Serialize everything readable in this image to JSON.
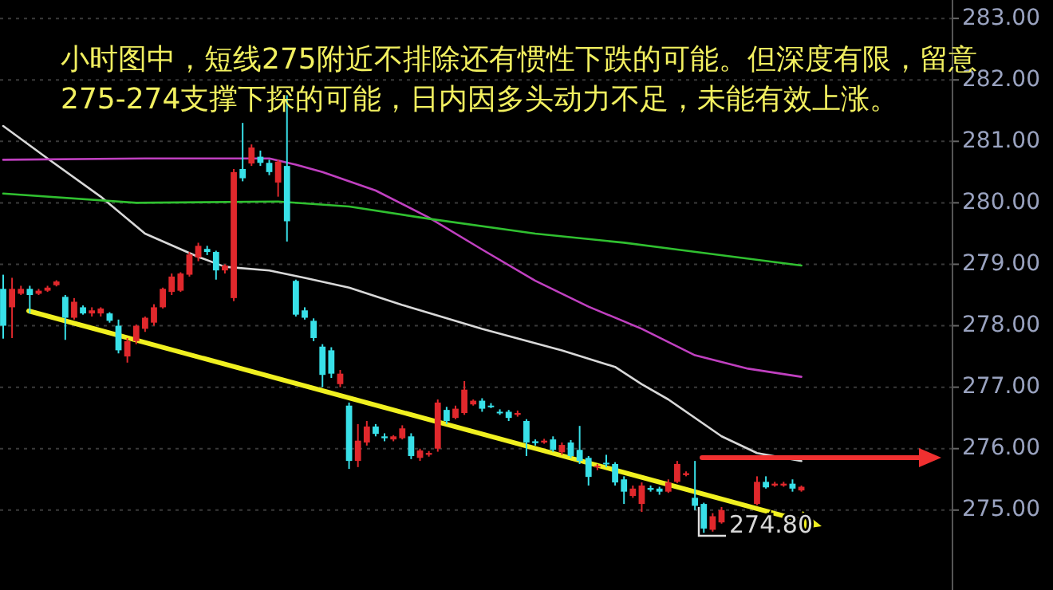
{
  "chart_data": {
    "type": "candlestick",
    "title": "小时图中，短线275附近不排除还有惯性下跌的可能。但深度有限，留意275-274支撑下探的可能，日内因多头动力不足，未能有效上涨。",
    "categories": [
      null,
      null,
      null,
      null,
      null,
      null,
      null,
      null,
      null,
      null,
      null,
      null,
      null,
      null,
      null,
      null,
      null,
      null,
      null,
      null,
      null,
      null,
      null,
      null,
      null,
      null,
      null,
      null,
      null,
      null,
      null,
      null,
      null,
      null,
      null,
      null,
      null,
      null,
      null,
      null,
      null,
      null,
      null,
      null,
      null,
      null,
      null,
      null,
      null,
      null,
      null,
      null,
      null,
      null,
      null,
      null,
      null,
      null,
      null,
      null,
      null,
      null,
      null,
      null,
      null,
      null,
      null,
      null,
      null,
      null,
      null,
      null,
      null,
      null,
      null,
      null,
      null,
      null,
      null,
      null,
      null,
      null,
      null,
      null,
      null,
      null,
      null,
      null,
      null,
      null,
      null,
      null,
      null,
      null,
      null,
      null,
      null,
      null,
      null,
      null,
      null,
      null,
      null,
      null,
      null,
      null,
      null
    ],
    "colors": [
      "#38e0e8",
      "#e0282c",
      "#e0282c",
      "#38e0e8",
      "#e0282c",
      "#e0282c",
      "#e0282c",
      "#38e0e8",
      "#e0282c",
      "#38e0e8",
      "#e0282c",
      "#e0282c",
      "#38e0e8",
      "#38e0e8",
      "#e0282c",
      "#e0282c",
      "#e0282c",
      "#e0282c",
      "#e0282c",
      "#e0282c",
      "#e0282c",
      "#e0282c",
      "#e0282c",
      "#38e0e8",
      "#38e0e8",
      "#e0282c",
      "#e0282c",
      "#38e0e8",
      "#e0282c",
      "#38e0e8",
      "#38e0e8",
      "#e0282c",
      "#38e0e8",
      "#38e0e8",
      "#38e0e8",
      "#38e0e8",
      "#38e0e8",
      "#38e0e8",
      "#e0282c",
      "#38e0e8",
      "#e0282c",
      "#e0282c",
      "#38e0e8",
      "#38e0e8",
      "#e0282c",
      "#e0282c",
      "#38e0e8",
      "#e0282c",
      "#e0282c",
      "#e0282c",
      "#38e0e8",
      "#e0282c",
      "#e0282c",
      "#e0282c",
      "#38e0e8",
      "#38e0e8",
      "#38e0e8",
      "#38e0e8",
      "#e0282c",
      "#38e0e8",
      "#38e0e8",
      "#e0282c",
      "#38e0e8",
      "#e0282c",
      "#38e0e8",
      "#38e0e8",
      "#38e0e8",
      "#e0282c",
      "#38e0e8",
      "#38e0e8",
      "#38e0e8",
      "#e0282c",
      "#e0282c",
      "#38e0e8",
      "#38e0e8",
      "#e0282c",
      "#e0282c",
      "#e0282c",
      "#38e0e8",
      "#38e0e8",
      "#e0282c",
      "#e0282c",
      null,
      null,
      null,
      "#e0282c",
      "#38e0e8",
      "#e0282c",
      "#e0282c",
      "#38e0e8",
      "#e0282c",
      null,
      null,
      null,
      null,
      null,
      null,
      null,
      null,
      null,
      null,
      null,
      null,
      null,
      null,
      null,
      null
    ],
    "ohlc": [
      [
        278.6,
        278.83,
        277.79,
        278.0
      ],
      [
        278.3,
        278.78,
        277.8,
        278.6
      ],
      [
        278.52,
        278.65,
        278.5,
        278.6
      ],
      [
        278.6,
        278.65,
        278.2,
        278.5
      ],
      [
        278.52,
        278.6,
        278.5,
        278.57
      ],
      [
        278.57,
        278.65,
        278.55,
        278.62
      ],
      [
        278.66,
        278.74,
        278.64,
        278.72
      ],
      [
        278.47,
        278.5,
        277.77,
        278.13
      ],
      [
        278.13,
        278.45,
        278.1,
        278.39
      ],
      [
        278.3,
        278.33,
        278.18,
        278.2
      ],
      [
        278.2,
        278.3,
        278.15,
        278.25
      ],
      [
        278.2,
        278.3,
        278.15,
        278.28
      ],
      [
        278.2,
        278.22,
        278.05,
        278.08
      ],
      [
        278.0,
        278.1,
        277.55,
        277.6
      ],
      [
        277.5,
        277.8,
        277.4,
        277.75
      ],
      [
        277.75,
        278.02,
        277.7,
        278.0
      ],
      [
        277.95,
        278.15,
        277.9,
        278.13
      ],
      [
        278.05,
        278.35,
        278.0,
        278.3
      ],
      [
        278.3,
        278.62,
        278.28,
        278.6
      ],
      [
        278.55,
        278.85,
        278.5,
        278.8
      ],
      [
        278.57,
        278.87,
        278.55,
        278.85
      ],
      [
        278.83,
        279.2,
        278.8,
        279.16
      ],
      [
        279.11,
        279.35,
        279.05,
        279.3
      ],
      [
        279.25,
        279.3,
        279.15,
        279.2
      ],
      [
        279.2,
        279.22,
        278.75,
        278.9
      ],
      [
        278.9,
        279.0,
        278.85,
        278.98
      ],
      [
        278.45,
        280.55,
        278.4,
        280.5
      ],
      [
        280.55,
        281.3,
        280.35,
        280.4
      ],
      [
        280.64,
        280.95,
        280.6,
        280.9
      ],
      [
        280.75,
        280.85,
        280.6,
        280.65
      ],
      [
        280.65,
        280.7,
        280.45,
        280.5
      ],
      [
        280.33,
        280.7,
        280.1,
        280.67
      ],
      [
        280.6,
        281.75,
        279.37,
        279.7
      ],
      [
        278.73,
        278.75,
        278.15,
        278.18
      ],
      [
        278.25,
        278.3,
        278.1,
        278.13
      ],
      [
        278.08,
        278.12,
        277.75,
        277.8
      ],
      [
        277.66,
        277.7,
        277.0,
        277.2
      ],
      [
        277.6,
        277.65,
        277.15,
        277.22
      ],
      [
        277.05,
        277.28,
        277.0,
        277.22
      ],
      [
        276.7,
        276.75,
        275.67,
        275.8
      ],
      [
        275.8,
        276.4,
        275.7,
        276.13
      ],
      [
        276.1,
        276.45,
        276.05,
        276.36
      ],
      [
        276.36,
        276.4,
        276.2,
        276.24
      ],
      [
        276.2,
        276.25,
        276.12,
        276.17
      ],
      [
        276.15,
        276.22,
        276.12,
        276.2
      ],
      [
        276.17,
        276.38,
        276.15,
        276.33
      ],
      [
        276.2,
        276.25,
        275.83,
        275.88
      ],
      [
        275.85,
        276.0,
        275.8,
        275.97
      ],
      [
        275.9,
        275.96,
        275.87,
        275.93
      ],
      [
        276.0,
        276.8,
        275.95,
        276.75
      ],
      [
        276.63,
        276.68,
        276.4,
        276.45
      ],
      [
        276.5,
        276.7,
        276.48,
        276.65
      ],
      [
        276.58,
        277.1,
        276.55,
        276.96
      ],
      [
        276.72,
        276.8,
        276.7,
        276.78
      ],
      [
        276.78,
        276.82,
        276.6,
        276.65
      ],
      [
        276.7,
        276.74,
        276.66,
        276.68
      ],
      [
        276.6,
        276.64,
        276.55,
        276.58
      ],
      [
        276.6,
        276.63,
        276.45,
        276.5
      ],
      [
        276.55,
        276.62,
        276.52,
        276.58
      ],
      [
        276.45,
        276.48,
        275.88,
        276.1
      ],
      [
        276.12,
        276.15,
        276.05,
        276.09
      ],
      [
        276.1,
        276.16,
        276.08,
        276.13
      ],
      [
        276.15,
        276.2,
        275.95,
        275.98
      ],
      [
        275.94,
        276.1,
        275.9,
        276.06
      ],
      [
        276.1,
        276.14,
        275.85,
        275.88
      ],
      [
        275.98,
        276.37,
        275.75,
        275.8
      ],
      [
        275.85,
        275.88,
        275.4,
        275.54
      ],
      [
        275.7,
        275.75,
        275.65,
        275.72
      ],
      [
        275.77,
        275.9,
        275.7,
        275.75
      ],
      [
        275.75,
        275.78,
        275.4,
        275.45
      ],
      [
        275.5,
        275.55,
        275.1,
        275.3
      ],
      [
        275.23,
        275.4,
        275.2,
        275.35
      ],
      [
        275.1,
        275.45,
        274.97,
        275.4
      ],
      [
        275.36,
        275.4,
        275.3,
        275.33
      ],
      [
        275.35,
        275.38,
        275.25,
        275.3
      ],
      [
        275.3,
        275.5,
        275.28,
        275.45
      ],
      [
        275.46,
        275.8,
        275.44,
        275.75
      ],
      [
        275.57,
        275.63,
        275.55,
        275.6
      ],
      [
        275.2,
        275.8,
        275.0,
        275.07
      ],
      [
        275.1,
        275.12,
        274.63,
        274.7
      ],
      [
        274.68,
        274.95,
        274.65,
        274.9
      ],
      [
        274.8,
        275.05,
        274.78,
        275.0
      ],
      null,
      null,
      null,
      [
        275.1,
        275.55,
        275.08,
        275.46
      ],
      [
        275.46,
        275.55,
        275.35,
        275.37
      ],
      [
        275.4,
        275.46,
        275.38,
        275.43
      ],
      [
        275.4,
        275.46,
        275.38,
        275.43
      ],
      [
        275.43,
        275.5,
        275.3,
        275.35
      ],
      [
        275.32,
        275.4,
        275.3,
        275.38
      ],
      null,
      null,
      null,
      null,
      null,
      null,
      null,
      null,
      null,
      null,
      null,
      null,
      null,
      null,
      null,
      null
    ],
    "series": [
      {
        "type": "line",
        "color": "#d8d8d8",
        "values": [
          281.25,
          null,
          null,
          null,
          null,
          280.72,
          null,
          null,
          null,
          null,
          null,
          280.1,
          null,
          null,
          null,
          null,
          279.5,
          null,
          null,
          null,
          null,
          null,
          279.12,
          null,
          null,
          278.96,
          null,
          null,
          null,
          null,
          278.9,
          null,
          null,
          null,
          278.78,
          null,
          null,
          null,
          null,
          278.62,
          null,
          null,
          null,
          null,
          null,
          278.34,
          null,
          null,
          null,
          null,
          null,
          null,
          null,
          null,
          277.95,
          null,
          null,
          null,
          null,
          null,
          null,
          null,
          null,
          277.6,
          null,
          null,
          null,
          null,
          null,
          277.33,
          null,
          null,
          277.05,
          null,
          null,
          276.8,
          null,
          null,
          null,
          null,
          null,
          276.2,
          null,
          null,
          null,
          275.93,
          null,
          null,
          null,
          null,
          275.8,
          null,
          null,
          null,
          null,
          null,
          null,
          null,
          null,
          null,
          null,
          null,
          null,
          null,
          null,
          null,
          null
        ]
      },
      {
        "type": "line",
        "color": "#c040c0",
        "values": [
          280.7,
          null,
          null,
          null,
          null,
          null,
          null,
          null,
          null,
          null,
          null,
          null,
          null,
          null,
          null,
          null,
          280.72,
          null,
          null,
          null,
          null,
          null,
          null,
          null,
          null,
          null,
          null,
          null,
          null,
          null,
          280.72,
          null,
          null,
          280.62,
          null,
          null,
          280.5,
          null,
          null,
          null,
          null,
          null,
          280.2,
          null,
          null,
          null,
          null,
          null,
          279.76,
          null,
          null,
          null,
          null,
          null,
          279.24,
          null,
          null,
          null,
          null,
          null,
          278.73,
          null,
          null,
          null,
          null,
          null,
          278.31,
          null,
          null,
          null,
          null,
          null,
          277.95,
          null,
          null,
          null,
          null,
          null,
          277.52,
          null,
          null,
          null,
          null,
          null,
          277.3,
          null,
          null,
          null,
          null,
          null,
          277.17,
          null,
          null,
          null,
          null,
          null,
          null,
          null,
          null,
          null,
          null,
          null,
          null,
          null,
          null,
          null,
          null
        ]
      },
      {
        "type": "line",
        "color": "#30c030",
        "values": [
          280.15,
          null,
          null,
          null,
          null,
          null,
          null,
          null,
          null,
          null,
          null,
          null,
          null,
          null,
          null,
          280.0,
          null,
          null,
          null,
          null,
          null,
          null,
          null,
          null,
          null,
          null,
          null,
          null,
          null,
          null,
          null,
          280.02,
          null,
          null,
          null,
          null,
          null,
          null,
          null,
          279.94,
          null,
          null,
          null,
          null,
          null,
          null,
          null,
          null,
          279.74,
          null,
          null,
          null,
          null,
          null,
          null,
          null,
          null,
          null,
          null,
          null,
          279.5,
          null,
          null,
          null,
          null,
          null,
          null,
          null,
          null,
          null,
          279.35,
          null,
          null,
          null,
          null,
          null,
          279.24,
          null,
          null,
          null,
          null,
          null,
          null,
          null,
          null,
          null,
          null,
          null,
          null,
          null,
          278.98,
          null,
          null,
          null,
          null,
          null,
          null,
          null,
          null,
          null,
          null,
          null,
          null,
          null,
          null,
          null,
          null
        ]
      }
    ],
    "ylim": [
      273.7,
      283.3
    ],
    "yticks": [
      {
        "value": 275,
        "label": "275.00"
      },
      {
        "value": 276,
        "label": "276.00"
      },
      {
        "value": 277,
        "label": "277.00"
      },
      {
        "value": 278,
        "label": "278.00"
      },
      {
        "value": 279,
        "label": "279.00"
      },
      {
        "value": 280,
        "label": "280.00"
      },
      {
        "value": 281,
        "label": "281.00"
      },
      {
        "value": 282,
        "label": "282.00"
      },
      {
        "value": 283,
        "label": "283.00"
      }
    ],
    "grid": "y",
    "tick_labels": "y",
    "annotations": [
      "274.80"
    ]
  }
}
